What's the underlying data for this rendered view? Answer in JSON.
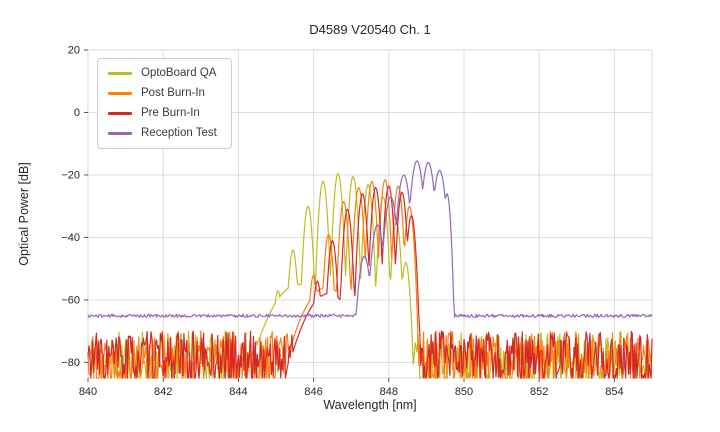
{
  "chart_data": {
    "type": "line",
    "title": "D4589 V20540 Ch. 1",
    "xlabel": "Wavelength [nm]",
    "ylabel": "Optical Power [dB]",
    "xlim": [
      840,
      855
    ],
    "ylim": [
      -85,
      20
    ],
    "x_ticks": [
      840,
      842,
      844,
      846,
      848,
      850,
      852,
      854
    ],
    "y_ticks": [
      20,
      0,
      -20,
      -40,
      -60,
      -80
    ],
    "y_tick_labels": [
      "20",
      "0",
      "−20",
      "−40",
      "−60",
      "−80"
    ],
    "grid": true,
    "grid_color": "#d9d9d9",
    "legend_position": "upper-left",
    "sample_step_nm": 0.025,
    "series": [
      {
        "name": "OptoBoard QA",
        "color": "#bcbd22",
        "mode_width_nm": 0.035,
        "noise": {
          "min_db": -88,
          "max_db": -70,
          "seed": 11
        },
        "peaks": [
          [
            845.6,
            -55,
            0.25
          ],
          [
            845.05,
            -57
          ],
          [
            845.45,
            -44
          ],
          [
            845.85,
            -30
          ],
          [
            846.25,
            -22
          ],
          [
            846.65,
            -19.5
          ],
          [
            847.05,
            -20.5
          ],
          [
            847.45,
            -23
          ],
          [
            847.85,
            -27
          ],
          [
            848.2,
            -35
          ],
          [
            848.45,
            -48
          ]
        ]
      },
      {
        "name": "Post Burn-In",
        "color": "#ff7f0e",
        "mode_width_nm": 0.035,
        "noise": {
          "min_db": -88,
          "max_db": -70,
          "seed": 22
        },
        "peaks": [
          [
            846.35,
            -56,
            0.22
          ],
          [
            846.0,
            -52
          ],
          [
            846.4,
            -39
          ],
          [
            846.8,
            -28.5
          ],
          [
            847.2,
            -24
          ],
          [
            847.55,
            -22
          ],
          [
            847.9,
            -21.5
          ],
          [
            848.25,
            -23.5
          ],
          [
            848.55,
            -30
          ]
        ]
      },
      {
        "name": "Pre Burn-In",
        "color": "#d62728",
        "mode_width_nm": 0.035,
        "noise": {
          "min_db": -88,
          "max_db": -70,
          "seed": 33
        },
        "peaks": [
          [
            846.4,
            -58,
            0.22
          ],
          [
            846.1,
            -54
          ],
          [
            846.5,
            -41
          ],
          [
            846.9,
            -31
          ],
          [
            847.3,
            -26
          ],
          [
            847.65,
            -24
          ],
          [
            848.0,
            -23.5
          ],
          [
            848.35,
            -25.5
          ],
          [
            848.6,
            -33
          ]
        ]
      },
      {
        "name": "Reception Test",
        "color": "#9467bd",
        "mode_width_nm": 0.05,
        "noise": {
          "min_db": -65.6,
          "max_db": -64.6,
          "seed": 44
        },
        "peaks": [
          [
            847.35,
            -46
          ],
          [
            847.7,
            -36
          ],
          [
            848.05,
            -27
          ],
          [
            848.4,
            -20
          ],
          [
            848.75,
            -15.5
          ],
          [
            849.05,
            -16
          ],
          [
            849.35,
            -18.5
          ],
          [
            849.55,
            -26,
            0.03
          ]
        ]
      }
    ]
  }
}
